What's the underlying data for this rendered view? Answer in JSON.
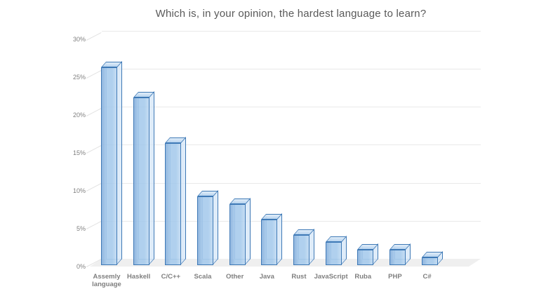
{
  "title": "Which is, in your opinion, the hardest language to learn?",
  "chart_data": {
    "type": "bar",
    "projection": "3d-column",
    "title": "Which is, in your opinion, the hardest language to learn?",
    "categories": [
      "Assemly language",
      "Haskell",
      "C/C++",
      "Scala",
      "Other",
      "Java",
      "Rust",
      "JavaScript",
      "Ruba",
      "PHP",
      "C#"
    ],
    "values": [
      26,
      22,
      16,
      9,
      8,
      6,
      4,
      3,
      2,
      2,
      1
    ],
    "unit": "%",
    "xlabel": "",
    "ylabel": "",
    "ylim": [
      0,
      30
    ],
    "ytick_step": 5,
    "ytick_labels": [
      "0%",
      "5%",
      "10%",
      "15%",
      "20%",
      "25%",
      "30%"
    ],
    "grid": true,
    "legend": false,
    "colors": {
      "title_text": "#595959",
      "axis_text": "#7f7f7f",
      "gridline": "#e9e9e9",
      "tick_connector": "#e2e2e2",
      "floor": "#efefef",
      "bar_front_left": "rgba(134,175,220,0.9)",
      "bar_front": "rgba(162,200,235,0.85)",
      "bar_front_right": "rgba(188,215,241,0.85)",
      "bar_top_front": "rgba(176,207,237,0.9)",
      "bar_top_back": "rgba(224,237,249,0.95)",
      "bar_side": "rgba(214,231,247,0.78)",
      "bar_border": "#3e79b6",
      "bar_hidden_edge": "rgba(90,140,195,0.55)"
    }
  }
}
